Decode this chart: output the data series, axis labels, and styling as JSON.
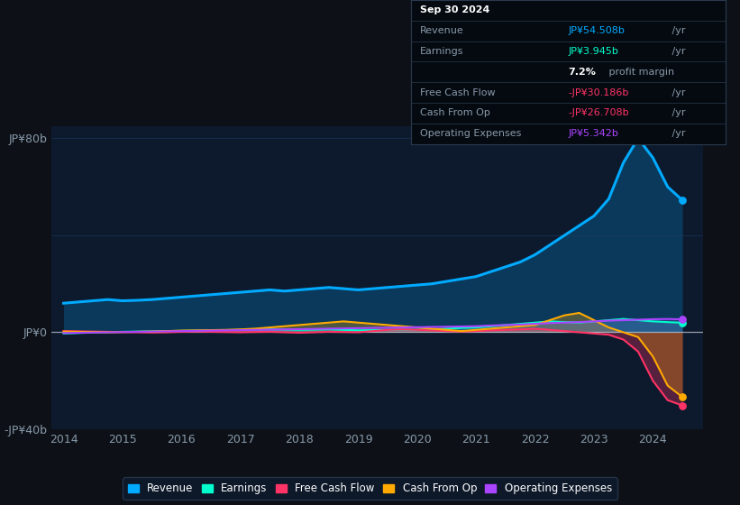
{
  "background_color": "#0d1117",
  "plot_bg_color": "#0d1a2e",
  "years": [
    2014,
    2014.25,
    2014.5,
    2014.75,
    2015,
    2015.25,
    2015.5,
    2015.75,
    2016,
    2016.25,
    2016.5,
    2016.75,
    2017,
    2017.25,
    2017.5,
    2017.75,
    2018,
    2018.25,
    2018.5,
    2018.75,
    2019,
    2019.25,
    2019.5,
    2019.75,
    2020,
    2020.25,
    2020.5,
    2020.75,
    2021,
    2021.25,
    2021.5,
    2021.75,
    2022,
    2022.25,
    2022.5,
    2022.75,
    2023,
    2023.25,
    2023.5,
    2023.75,
    2024,
    2024.25,
    2024.5
  ],
  "revenue": [
    12,
    12.5,
    13,
    13.5,
    13,
    13.2,
    13.5,
    14,
    14.5,
    15,
    15.5,
    16,
    16.5,
    17,
    17.5,
    17,
    17.5,
    18,
    18.5,
    18,
    17.5,
    18,
    18.5,
    19,
    19.5,
    20,
    21,
    22,
    23,
    25,
    27,
    29,
    32,
    36,
    40,
    44,
    48,
    55,
    70,
    80,
    72,
    60,
    54.5
  ],
  "earnings": [
    -0.5,
    -0.3,
    -0.1,
    0.1,
    0.2,
    0.3,
    0.4,
    0.5,
    0.6,
    0.7,
    0.8,
    0.9,
    1.0,
    1.1,
    1.2,
    1.1,
    1.0,
    1.1,
    1.2,
    1.0,
    0.8,
    0.9,
    1.0,
    1.1,
    1.0,
    1.2,
    1.5,
    1.8,
    2.0,
    2.5,
    3.0,
    3.5,
    4.0,
    4.5,
    4.2,
    4.0,
    4.5,
    5.0,
    5.5,
    5.0,
    4.5,
    4.2,
    3.945
  ],
  "free_cash_flow": [
    0.5,
    0.4,
    0.3,
    0.2,
    0.1,
    0.0,
    -0.1,
    0.0,
    0.2,
    0.3,
    0.2,
    0.1,
    0.0,
    0.1,
    0.2,
    0.0,
    -0.2,
    0.0,
    0.2,
    0.1,
    0.0,
    0.5,
    1.0,
    1.2,
    1.0,
    0.8,
    0.5,
    0.3,
    0.5,
    0.8,
    1.0,
    1.2,
    1.5,
    1.0,
    0.5,
    0.0,
    -0.5,
    -1.0,
    -3.0,
    -8.0,
    -20.0,
    -28.0,
    -30.186
  ],
  "cash_from_op": [
    0.3,
    0.2,
    0.1,
    0.0,
    0.1,
    0.2,
    0.3,
    0.5,
    0.7,
    0.8,
    0.9,
    1.0,
    1.2,
    1.5,
    2.0,
    2.5,
    3.0,
    3.5,
    4.0,
    4.5,
    4.0,
    3.5,
    3.0,
    2.5,
    2.0,
    1.5,
    1.0,
    0.5,
    1.0,
    1.5,
    2.0,
    2.5,
    3.0,
    5.0,
    7.0,
    8.0,
    5.0,
    2.0,
    0.0,
    -2.0,
    -10.0,
    -22.0,
    -26.708
  ],
  "operating_expenses": [
    -0.3,
    -0.2,
    -0.1,
    0.0,
    0.1,
    0.2,
    0.3,
    0.4,
    0.5,
    0.6,
    0.7,
    0.8,
    0.9,
    1.0,
    1.1,
    1.2,
    1.3,
    1.4,
    1.5,
    1.6,
    1.7,
    1.8,
    1.9,
    2.0,
    2.1,
    2.2,
    2.3,
    2.4,
    2.5,
    2.8,
    3.0,
    3.2,
    3.5,
    3.8,
    4.0,
    4.2,
    4.5,
    4.8,
    5.0,
    5.2,
    5.4,
    5.5,
    5.342
  ],
  "revenue_color": "#00aaff",
  "earnings_color": "#00ffcc",
  "fcf_color": "#ff3366",
  "cashop_color": "#ffaa00",
  "opex_color": "#aa44ff",
  "ylim_min": -40,
  "ylim_max": 85,
  "xtick_years": [
    2014,
    2015,
    2016,
    2017,
    2018,
    2019,
    2020,
    2021,
    2022,
    2023,
    2024
  ],
  "info_box": {
    "date": "Sep 30 2024",
    "revenue_label": "Revenue",
    "revenue_value": "JP¥54.508b",
    "revenue_unit": " /yr",
    "earnings_label": "Earnings",
    "earnings_value": "JP¥3.945b",
    "earnings_unit": " /yr",
    "margin_value": "7.2%",
    "margin_text": " profit margin",
    "fcf_label": "Free Cash Flow",
    "fcf_value": "-JP¥30.186b",
    "fcf_unit": " /yr",
    "cashop_label": "Cash From Op",
    "cashop_value": "-JP¥26.708b",
    "cashop_unit": " /yr",
    "opex_label": "Operating Expenses",
    "opex_value": "JP¥5.342b",
    "opex_unit": " /yr"
  },
  "legend_items": [
    {
      "label": "Revenue",
      "color": "#00aaff"
    },
    {
      "label": "Earnings",
      "color": "#00ffcc"
    },
    {
      "label": "Free Cash Flow",
      "color": "#ff3366"
    },
    {
      "label": "Cash From Op",
      "color": "#ffaa00"
    },
    {
      "label": "Operating Expenses",
      "color": "#aa44ff"
    }
  ]
}
